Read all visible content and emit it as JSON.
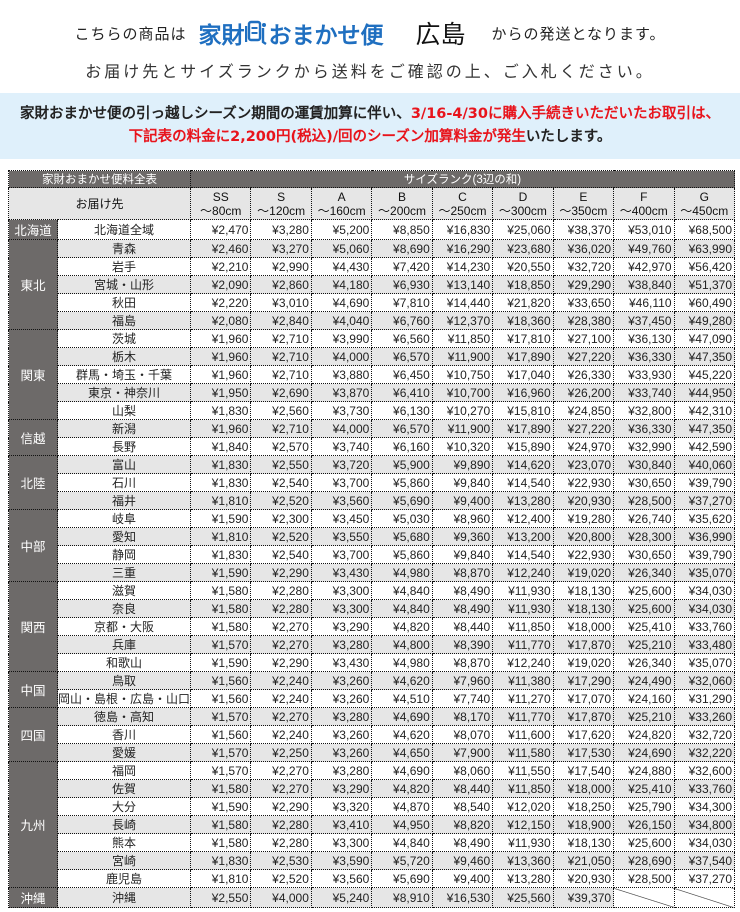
{
  "header": {
    "prefix": "こちらの商品は",
    "logo": {
      "part1": "家財",
      "part2": "おまかせ便",
      "icon": "person-carrying-box-icon",
      "color": "#1f6fc0"
    },
    "origin": "広島",
    "suffix": "からの発送となります。",
    "instruction": "お届け先とサイズランクから送料をご確認の上、ご入札ください。"
  },
  "notice": {
    "text1": "家財おまかせ便の引っ越しシーズン期間の運賃加算に伴い、",
    "highlight1": "3/16-4/30に購入手続きいただいたお取引は、",
    "highlight2": "下記表の料金に2,200円(税込)/回のシーズン加算料金が発生",
    "text2": "いたします。",
    "background": "#dff0fb",
    "highlight_color": "#e8141c"
  },
  "table": {
    "title": "家財おまかせ便料全表",
    "size_rank_label": "サイズランク(3辺の和)",
    "destination_label": "お届け先",
    "sizes": [
      {
        "rank": "SS",
        "range": "～80cm"
      },
      {
        "rank": "S",
        "range": "～120cm"
      },
      {
        "rank": "A",
        "range": "～160cm"
      },
      {
        "rank": "B",
        "range": "～200cm"
      },
      {
        "rank": "C",
        "range": "～250cm"
      },
      {
        "rank": "D",
        "range": "～300cm"
      },
      {
        "rank": "E",
        "range": "～350cm"
      },
      {
        "rank": "F",
        "range": "～400cm"
      },
      {
        "rank": "G",
        "range": "～450cm"
      }
    ],
    "regions": [
      {
        "name": "北海道",
        "rows": [
          {
            "dest": "北海道全域",
            "prices": [
              "¥2,470",
              "¥3,280",
              "¥5,200",
              "¥8,850",
              "¥16,830",
              "¥25,060",
              "¥38,370",
              "¥53,010",
              "¥68,500"
            ]
          }
        ]
      },
      {
        "name": "東北",
        "rows": [
          {
            "dest": "青森",
            "prices": [
              "¥2,460",
              "¥3,270",
              "¥5,060",
              "¥8,690",
              "¥16,290",
              "¥23,680",
              "¥36,020",
              "¥49,760",
              "¥63,990"
            ]
          },
          {
            "dest": "岩手",
            "prices": [
              "¥2,210",
              "¥2,990",
              "¥4,430",
              "¥7,420",
              "¥14,230",
              "¥20,550",
              "¥32,720",
              "¥42,970",
              "¥56,420"
            ]
          },
          {
            "dest": "宮城・山形",
            "prices": [
              "¥2,090",
              "¥2,860",
              "¥4,180",
              "¥6,930",
              "¥13,140",
              "¥18,850",
              "¥29,290",
              "¥38,840",
              "¥51,370"
            ]
          },
          {
            "dest": "秋田",
            "prices": [
              "¥2,220",
              "¥3,010",
              "¥4,690",
              "¥7,810",
              "¥14,440",
              "¥21,820",
              "¥33,650",
              "¥46,110",
              "¥60,490"
            ]
          },
          {
            "dest": "福島",
            "prices": [
              "¥2,080",
              "¥2,840",
              "¥4,040",
              "¥6,760",
              "¥12,370",
              "¥18,360",
              "¥28,380",
              "¥37,450",
              "¥49,280"
            ]
          }
        ]
      },
      {
        "name": "関東",
        "rows": [
          {
            "dest": "茨城",
            "prices": [
              "¥1,960",
              "¥2,710",
              "¥3,990",
              "¥6,560",
              "¥11,850",
              "¥17,810",
              "¥27,100",
              "¥36,130",
              "¥47,090"
            ]
          },
          {
            "dest": "栃木",
            "prices": [
              "¥1,960",
              "¥2,710",
              "¥4,000",
              "¥6,570",
              "¥11,900",
              "¥17,890",
              "¥27,220",
              "¥36,330",
              "¥47,350"
            ]
          },
          {
            "dest": "群馬・埼玉・千葉",
            "prices": [
              "¥1,960",
              "¥2,710",
              "¥3,880",
              "¥6,450",
              "¥10,750",
              "¥17,040",
              "¥26,330",
              "¥33,930",
              "¥45,220"
            ]
          },
          {
            "dest": "東京・神奈川",
            "prices": [
              "¥1,950",
              "¥2,690",
              "¥3,870",
              "¥6,410",
              "¥10,700",
              "¥16,960",
              "¥26,200",
              "¥33,740",
              "¥44,950"
            ]
          },
          {
            "dest": "山梨",
            "prices": [
              "¥1,830",
              "¥2,560",
              "¥3,730",
              "¥6,130",
              "¥10,270",
              "¥15,810",
              "¥24,850",
              "¥32,800",
              "¥42,310"
            ]
          }
        ]
      },
      {
        "name": "信越",
        "rows": [
          {
            "dest": "新潟",
            "prices": [
              "¥1,960",
              "¥2,710",
              "¥4,000",
              "¥6,570",
              "¥11,900",
              "¥17,890",
              "¥27,220",
              "¥36,330",
              "¥47,350"
            ]
          },
          {
            "dest": "長野",
            "prices": [
              "¥1,840",
              "¥2,570",
              "¥3,740",
              "¥6,160",
              "¥10,320",
              "¥15,890",
              "¥24,970",
              "¥32,990",
              "¥42,590"
            ]
          }
        ]
      },
      {
        "name": "北陸",
        "rows": [
          {
            "dest": "富山",
            "prices": [
              "¥1,830",
              "¥2,550",
              "¥3,720",
              "¥5,900",
              "¥9,890",
              "¥14,620",
              "¥23,070",
              "¥30,840",
              "¥40,060"
            ]
          },
          {
            "dest": "石川",
            "prices": [
              "¥1,830",
              "¥2,540",
              "¥3,700",
              "¥5,860",
              "¥9,840",
              "¥14,540",
              "¥22,930",
              "¥30,650",
              "¥39,790"
            ]
          },
          {
            "dest": "福井",
            "prices": [
              "¥1,810",
              "¥2,520",
              "¥3,560",
              "¥5,690",
              "¥9,400",
              "¥13,280",
              "¥20,930",
              "¥28,500",
              "¥37,270"
            ]
          }
        ]
      },
      {
        "name": "中部",
        "rows": [
          {
            "dest": "岐阜",
            "prices": [
              "¥1,590",
              "¥2,300",
              "¥3,450",
              "¥5,030",
              "¥8,960",
              "¥12,400",
              "¥19,280",
              "¥26,740",
              "¥35,620"
            ]
          },
          {
            "dest": "愛知",
            "prices": [
              "¥1,810",
              "¥2,520",
              "¥3,550",
              "¥5,680",
              "¥9,360",
              "¥13,200",
              "¥20,800",
              "¥28,300",
              "¥36,990"
            ]
          },
          {
            "dest": "静岡",
            "prices": [
              "¥1,830",
              "¥2,540",
              "¥3,700",
              "¥5,860",
              "¥9,840",
              "¥14,540",
              "¥22,930",
              "¥30,650",
              "¥39,790"
            ]
          },
          {
            "dest": "三重",
            "prices": [
              "¥1,590",
              "¥2,290",
              "¥3,430",
              "¥4,980",
              "¥8,870",
              "¥12,240",
              "¥19,020",
              "¥26,340",
              "¥35,070"
            ]
          }
        ]
      },
      {
        "name": "関西",
        "rows": [
          {
            "dest": "滋賀",
            "prices": [
              "¥1,580",
              "¥2,280",
              "¥3,300",
              "¥4,840",
              "¥8,490",
              "¥11,930",
              "¥18,130",
              "¥25,600",
              "¥34,030"
            ]
          },
          {
            "dest": "奈良",
            "prices": [
              "¥1,580",
              "¥2,280",
              "¥3,300",
              "¥4,840",
              "¥8,490",
              "¥11,930",
              "¥18,130",
              "¥25,600",
              "¥34,030"
            ]
          },
          {
            "dest": "京都・大阪",
            "prices": [
              "¥1,580",
              "¥2,270",
              "¥3,290",
              "¥4,820",
              "¥8,440",
              "¥11,850",
              "¥18,000",
              "¥25,410",
              "¥33,760"
            ]
          },
          {
            "dest": "兵庫",
            "prices": [
              "¥1,570",
              "¥2,270",
              "¥3,280",
              "¥4,800",
              "¥8,390",
              "¥11,770",
              "¥17,870",
              "¥25,210",
              "¥33,480"
            ]
          },
          {
            "dest": "和歌山",
            "prices": [
              "¥1,590",
              "¥2,290",
              "¥3,430",
              "¥4,980",
              "¥8,870",
              "¥12,240",
              "¥19,020",
              "¥26,340",
              "¥35,070"
            ]
          }
        ]
      },
      {
        "name": "中国",
        "rows": [
          {
            "dest": "鳥取",
            "prices": [
              "¥1,560",
              "¥2,240",
              "¥3,260",
              "¥4,620",
              "¥7,960",
              "¥11,380",
              "¥17,290",
              "¥24,490",
              "¥32,060"
            ]
          },
          {
            "dest": "岡山・島根・広島・山口",
            "prices": [
              "¥1,560",
              "¥2,240",
              "¥3,260",
              "¥4,510",
              "¥7,740",
              "¥11,270",
              "¥17,070",
              "¥24,160",
              "¥31,290"
            ]
          }
        ]
      },
      {
        "name": "四国",
        "rows": [
          {
            "dest": "徳島・高知",
            "prices": [
              "¥1,570",
              "¥2,270",
              "¥3,280",
              "¥4,690",
              "¥8,170",
              "¥11,770",
              "¥17,870",
              "¥25,210",
              "¥33,260"
            ]
          },
          {
            "dest": "香川",
            "prices": [
              "¥1,560",
              "¥2,240",
              "¥3,260",
              "¥4,620",
              "¥8,070",
              "¥11,600",
              "¥17,620",
              "¥24,820",
              "¥32,720"
            ]
          },
          {
            "dest": "愛媛",
            "prices": [
              "¥1,570",
              "¥2,250",
              "¥3,260",
              "¥4,650",
              "¥7,900",
              "¥11,580",
              "¥17,530",
              "¥24,690",
              "¥32,220"
            ]
          }
        ]
      },
      {
        "name": "九州",
        "rows": [
          {
            "dest": "福岡",
            "prices": [
              "¥1,570",
              "¥2,270",
              "¥3,280",
              "¥4,690",
              "¥8,060",
              "¥11,550",
              "¥17,540",
              "¥24,880",
              "¥32,600"
            ]
          },
          {
            "dest": "佐賀",
            "prices": [
              "¥1,580",
              "¥2,270",
              "¥3,290",
              "¥4,820",
              "¥8,440",
              "¥11,850",
              "¥18,000",
              "¥25,410",
              "¥33,760"
            ]
          },
          {
            "dest": "大分",
            "prices": [
              "¥1,590",
              "¥2,290",
              "¥3,320",
              "¥4,870",
              "¥8,540",
              "¥12,020",
              "¥18,250",
              "¥25,790",
              "¥34,300"
            ]
          },
          {
            "dest": "長崎",
            "prices": [
              "¥1,580",
              "¥2,280",
              "¥3,410",
              "¥4,950",
              "¥8,820",
              "¥12,150",
              "¥18,900",
              "¥26,150",
              "¥34,800"
            ]
          },
          {
            "dest": "熊本",
            "prices": [
              "¥1,580",
              "¥2,280",
              "¥3,300",
              "¥4,840",
              "¥8,490",
              "¥11,930",
              "¥18,130",
              "¥25,600",
              "¥34,030"
            ]
          },
          {
            "dest": "宮崎",
            "prices": [
              "¥1,830",
              "¥2,530",
              "¥3,590",
              "¥5,720",
              "¥9,460",
              "¥13,360",
              "¥21,050",
              "¥28,690",
              "¥37,540"
            ]
          },
          {
            "dest": "鹿児島",
            "prices": [
              "¥1,810",
              "¥2,520",
              "¥3,560",
              "¥5,690",
              "¥9,400",
              "¥13,280",
              "¥20,930",
              "¥28,500",
              "¥37,270"
            ]
          }
        ]
      },
      {
        "name": "沖縄",
        "rows": [
          {
            "dest": "沖縄",
            "prices": [
              "¥2,550",
              "¥4,000",
              "¥5,240",
              "¥8,910",
              "¥16,530",
              "¥25,560",
              "¥39,370",
              null,
              null
            ]
          }
        ]
      }
    ]
  }
}
